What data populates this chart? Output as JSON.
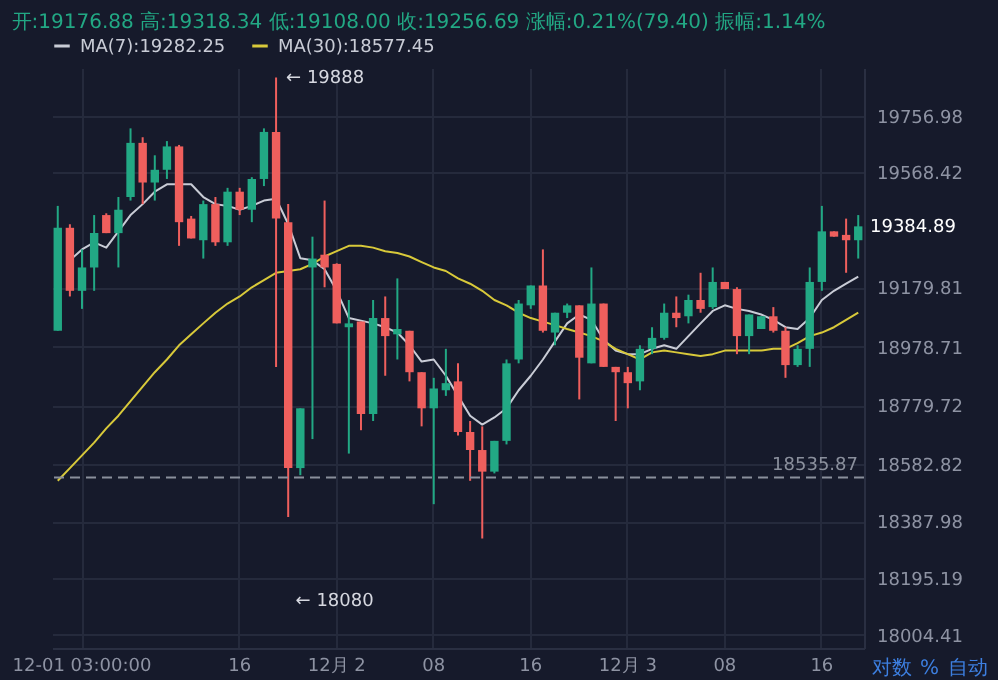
{
  "chart_data": {
    "type": "candlestick",
    "title": "开:19176.88 高:19318.34 低:19108.00 收:19256.69 涨幅:0.21%(79.40) 振幅:1.14%",
    "categories": [
      null,
      null,
      "12-01 03:00:00",
      null,
      null,
      null,
      null,
      null,
      null,
      null,
      null,
      null,
      null,
      null,
      null,
      "16",
      null,
      null,
      null,
      null,
      null,
      null,
      null,
      "12月 2",
      null,
      null,
      null,
      null,
      null,
      null,
      null,
      "08",
      null,
      null,
      null,
      null,
      null,
      null,
      null,
      "16",
      null,
      null,
      null,
      null,
      null,
      null,
      null,
      "12月 3",
      null,
      null,
      null,
      null,
      null,
      null,
      null,
      "08",
      null,
      null,
      null,
      null,
      null,
      null,
      null,
      "16",
      null,
      null,
      null
    ],
    "ohlc": [
      [
        19032,
        19454,
        19032,
        19380
      ],
      [
        19380,
        19392,
        19148,
        19167
      ],
      [
        19167,
        19307,
        19106,
        19246
      ],
      [
        19246,
        19423,
        19167,
        19362
      ],
      [
        19423,
        19429,
        19362,
        19362
      ],
      [
        19362,
        19484,
        19246,
        19441
      ],
      [
        19484,
        19716,
        19472,
        19667
      ],
      [
        19667,
        19686,
        19460,
        19533
      ],
      [
        19533,
        19625,
        19472,
        19576
      ],
      [
        19576,
        19673,
        19545,
        19655
      ],
      [
        19655,
        19660,
        19319,
        19399
      ],
      [
        19411,
        19420,
        19344,
        19344
      ],
      [
        19338,
        19472,
        19276,
        19460
      ],
      [
        19460,
        19484,
        19319,
        19331
      ],
      [
        19331,
        19515,
        19319,
        19502
      ],
      [
        19502,
        19515,
        19423,
        19441
      ],
      [
        19441,
        19551,
        19399,
        19545
      ],
      [
        19545,
        19716,
        19521,
        19704
      ],
      [
        19704,
        19888,
        18910,
        19411
      ],
      [
        19399,
        19460,
        18403,
        18568
      ],
      [
        18568,
        18770,
        18544,
        18770
      ],
      [
        19246,
        19350,
        18666,
        19276
      ],
      [
        19289,
        19472,
        19179,
        19246
      ],
      [
        19258,
        19260,
        19057,
        19057
      ],
      [
        19044,
        19136,
        18617,
        19057
      ],
      [
        19063,
        19063,
        18696,
        18751
      ],
      [
        18751,
        19136,
        18727,
        19075
      ],
      [
        19075,
        19148,
        18880,
        19014
      ],
      [
        19020,
        19209,
        18935,
        19038
      ],
      [
        19032,
        19032,
        18861,
        18892
      ],
      [
        18892,
        18892,
        18709,
        18770
      ],
      [
        18770,
        18873,
        18446,
        18837
      ],
      [
        18831,
        18971,
        18812,
        18855
      ],
      [
        18861,
        18922,
        18678,
        18690
      ],
      [
        18690,
        18727,
        18525,
        18629
      ],
      [
        18629,
        18709,
        18330,
        18556
      ],
      [
        18556,
        18660,
        18550,
        18660
      ],
      [
        18660,
        18935,
        18648,
        18922
      ],
      [
        18935,
        19136,
        18922,
        19124
      ],
      [
        19118,
        19185,
        19106,
        19185
      ],
      [
        19185,
        19307,
        19026,
        19032
      ],
      [
        19026,
        19093,
        18983,
        19093
      ],
      [
        19093,
        19124,
        19075,
        19118
      ],
      [
        19118,
        19118,
        18800,
        18941
      ],
      [
        18922,
        19246,
        18922,
        19124
      ],
      [
        19124,
        19124,
        18910,
        18910
      ],
      [
        18910,
        18910,
        18727,
        18892
      ],
      [
        18892,
        18910,
        18770,
        18855
      ],
      [
        18861,
        18983,
        18831,
        18971
      ],
      [
        18971,
        19044,
        18953,
        19008
      ],
      [
        19008,
        19124,
        19002,
        19093
      ],
      [
        19093,
        19148,
        19044,
        19075
      ],
      [
        19081,
        19154,
        19057,
        19136
      ],
      [
        19136,
        19228,
        19093,
        19106
      ],
      [
        19112,
        19246,
        19106,
        19197
      ],
      [
        19197,
        19197,
        19173,
        19173
      ],
      [
        19173,
        19179,
        18953,
        19014
      ],
      [
        19014,
        19087,
        18953,
        19087
      ],
      [
        19038,
        19081,
        19038,
        19081
      ],
      [
        19081,
        19112,
        19026,
        19032
      ],
      [
        19032,
        19044,
        18873,
        18916
      ],
      [
        18916,
        18983,
        18910,
        18971
      ],
      [
        18971,
        19246,
        18910,
        19197
      ],
      [
        19197,
        19454,
        19167,
        19368
      ],
      [
        19368,
        19368,
        19350,
        19350
      ],
      [
        19356,
        19411,
        19228,
        19338
      ],
      [
        19338,
        19423,
        19276,
        19384.89
      ]
    ],
    "series": [
      {
        "name": "MA(7):19282.25",
        "type": "line",
        "color": "#c9ccd6",
        "values": [
          null,
          19270,
          19307,
          19331,
          19313,
          19368,
          19423,
          19460,
          19502,
          19527,
          19527,
          19527,
          19484,
          19460,
          19454,
          19441,
          19454,
          19472,
          19478,
          19393,
          19277,
          19270,
          19240,
          19167,
          19075,
          null,
          19057,
          19044,
          19026,
          18983,
          18928,
          18935,
          18880,
          18812,
          18745,
          18715,
          18739,
          18770,
          18831,
          18880,
          18935,
          18996,
          19057,
          19087,
          19069,
          19002,
          18965,
          18953,
          18953,
          18971,
          18983,
          18971,
          19014,
          19057,
          19099,
          19118,
          19106,
          19099,
          19087,
          19069,
          19044,
          19038,
          19075,
          19136,
          19167,
          19191,
          19215
        ]
      },
      {
        "name": "MA(30):18577.45",
        "type": "line",
        "color": "#d8c93a",
        "values": [
          18525,
          18568,
          18611,
          18654,
          18702,
          18745,
          18794,
          18843,
          18892,
          18935,
          18983,
          19020,
          19057,
          19093,
          19124,
          19148,
          19179,
          19203,
          19228,
          19234,
          19240,
          19258,
          19283,
          19301,
          19319,
          19319,
          19313,
          19301,
          19295,
          19283,
          19264,
          19246,
          19234,
          19209,
          19191,
          19167,
          19136,
          19118,
          19093,
          19075,
          19063,
          19051,
          19038,
          19026,
          19014,
          18996,
          18971,
          18953,
          18935,
          18959,
          18965,
          18959,
          18953,
          18947,
          18953,
          18965,
          18965,
          18965,
          18965,
          18971,
          18971,
          18990,
          19014,
          19026,
          19044,
          19069,
          19093
        ]
      }
    ],
    "ylim": [
      17960,
      19920
    ],
    "yticks": [
      19756.98,
      19568.42,
      19179.81,
      18978.71,
      18779.72,
      18582.82,
      18387.98,
      18195.19,
      18004.41
    ],
    "grid": true,
    "legend": "top left",
    "ref_lines": [
      {
        "axis": "y",
        "value": 18535.87,
        "label": "18535.87",
        "line_style": "dashed",
        "color": "#8a8f9c"
      }
    ],
    "annotations": [
      "← 19888",
      "19384.89",
      "← 18080",
      "对数",
      "%",
      "自动"
    ]
  }
}
